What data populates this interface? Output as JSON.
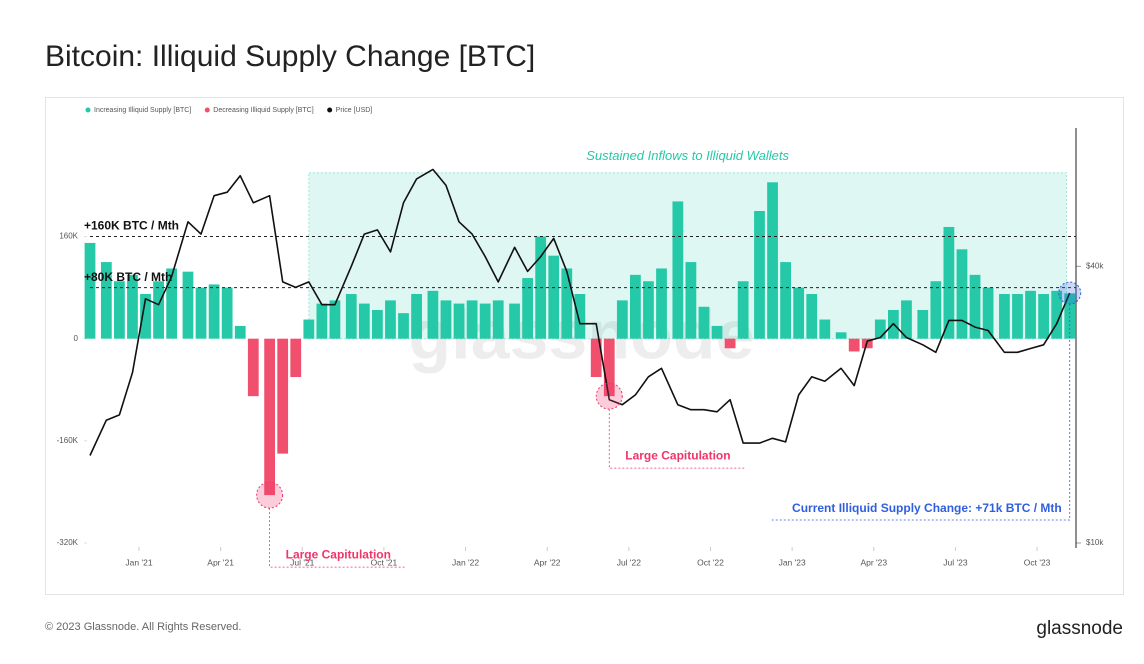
{
  "chart_data": {
    "type": "bar",
    "title": "Bitcoin: Illiquid Supply Change [BTC]",
    "legend": "top-left",
    "x": [
      2020.85,
      2020.9,
      2020.94,
      2020.98,
      2021.02,
      2021.06,
      2021.1,
      2021.15,
      2021.19,
      2021.23,
      2021.27,
      2021.31,
      2021.35,
      2021.4,
      2021.44,
      2021.48,
      2021.52,
      2021.56,
      2021.6,
      2021.65,
      2021.69,
      2021.73,
      2021.77,
      2021.81,
      2021.85,
      2021.9,
      2021.94,
      2021.98,
      2022.02,
      2022.06,
      2022.1,
      2022.15,
      2022.19,
      2022.23,
      2022.27,
      2022.31,
      2022.35,
      2022.4,
      2022.44,
      2022.48,
      2022.52,
      2022.56,
      2022.6,
      2022.65,
      2022.69,
      2022.73,
      2022.77,
      2022.81,
      2022.85,
      2022.9,
      2022.94,
      2022.98,
      2023.02,
      2023.06,
      2023.1,
      2023.15,
      2023.19,
      2023.23,
      2023.27,
      2023.31,
      2023.35,
      2023.4,
      2023.44,
      2023.48,
      2023.52,
      2023.56,
      2023.6,
      2023.65,
      2023.69,
      2023.73,
      2023.77,
      2023.81,
      2023.85
    ],
    "series": [
      {
        "name": "Increasing Illiquid Supply [BTC]",
        "color": "#25c9a8",
        "values": [
          150000,
          120000,
          90000,
          100000,
          70000,
          90000,
          110000,
          105000,
          80000,
          85000,
          80000,
          20000,
          null,
          null,
          null,
          null,
          30000,
          55000,
          60000,
          70000,
          55000,
          45000,
          60000,
          40000,
          70000,
          75000,
          60000,
          55000,
          60000,
          55000,
          60000,
          55000,
          95000,
          160000,
          130000,
          110000,
          70000,
          null,
          null,
          60000,
          100000,
          90000,
          110000,
          215000,
          120000,
          50000,
          20000,
          null,
          90000,
          200000,
          245000,
          120000,
          80000,
          70000,
          30000,
          10000,
          null,
          null,
          30000,
          45000,
          60000,
          45000,
          90000,
          175000,
          140000,
          100000,
          80000,
          70000,
          70000,
          75000,
          70000,
          75000,
          71000
        ]
      },
      {
        "name": "Decreasing Illiquid Supply [BTC]",
        "color": "#f0506e",
        "values": [
          null,
          null,
          null,
          null,
          null,
          null,
          null,
          null,
          null,
          null,
          null,
          null,
          -90000,
          -245000,
          -180000,
          -60000,
          null,
          null,
          null,
          null,
          null,
          null,
          null,
          null,
          null,
          null,
          null,
          null,
          null,
          null,
          null,
          null,
          null,
          null,
          null,
          null,
          null,
          -60000,
          -90000,
          null,
          null,
          null,
          null,
          null,
          null,
          null,
          null,
          -15000,
          null,
          null,
          null,
          null,
          null,
          null,
          null,
          null,
          -20000,
          -15000,
          null,
          null,
          null,
          null,
          null,
          null,
          null,
          null,
          null,
          null,
          null,
          null,
          null,
          null,
          null
        ]
      },
      {
        "name": "Price [USD]",
        "color": "#111111",
        "type": "line",
        "axis": "y2",
        "values": [
          15500,
          18500,
          19000,
          23500,
          34000,
          33000,
          38000,
          50000,
          47000,
          57000,
          58000,
          63000,
          55000,
          57000,
          37000,
          36000,
          37000,
          33000,
          33000,
          40000,
          47000,
          48000,
          43000,
          55000,
          62000,
          65000,
          60000,
          50000,
          47000,
          42000,
          37000,
          44000,
          39000,
          42000,
          46000,
          39000,
          30000,
          30000,
          20500,
          20000,
          21000,
          23000,
          24000,
          20000,
          19500,
          19500,
          19300,
          20500,
          16500,
          16500,
          16900,
          16600,
          21000,
          23000,
          22500,
          24000,
          22000,
          27500,
          28000,
          30000,
          28000,
          27000,
          26000,
          30500,
          30500,
          29500,
          29000,
          26000,
          26000,
          26500,
          27000,
          30000,
          35000
        ]
      }
    ],
    "xlim": [
      2020.85,
      2023.86
    ],
    "xticks": [
      {
        "value": 2021.0,
        "label": "Jan '21"
      },
      {
        "value": 2021.25,
        "label": "Apr '21"
      },
      {
        "value": 2021.5,
        "label": "Jul '21"
      },
      {
        "value": 2021.75,
        "label": "Oct '21"
      },
      {
        "value": 2022.0,
        "label": "Jan '22"
      },
      {
        "value": 2022.25,
        "label": "Apr '22"
      },
      {
        "value": 2022.5,
        "label": "Jul '22"
      },
      {
        "value": 2022.75,
        "label": "Oct '22"
      },
      {
        "value": 2023.0,
        "label": "Jan '23"
      },
      {
        "value": 2023.25,
        "label": "Apr '23"
      },
      {
        "value": 2023.5,
        "label": "Jul '23"
      },
      {
        "value": 2023.75,
        "label": "Oct '23"
      }
    ],
    "ylim": [
      -320000,
      330000
    ],
    "yticks": [
      {
        "value": 160000,
        "label": "160K"
      },
      0,
      {
        "value": -160000,
        "label": "-160K"
      },
      {
        "value": -320000,
        "label": "-320K"
      }
    ],
    "y2lim": [
      10000,
      80000
    ],
    "y2ticks": [
      {
        "value": 40000,
        "label": "$40k"
      },
      {
        "value": 10000,
        "label": "$10k"
      }
    ],
    "y2log": true,
    "reference_lines": [
      {
        "value": 160000,
        "label": "+160K BTC / Mth"
      },
      {
        "value": 80000,
        "label": "+80K BTC / Mth"
      }
    ],
    "shaded_region": {
      "label": "Sustained Inflows to Illiquid Wallets",
      "xlim": [
        2021.52,
        2023.84
      ],
      "ylim": [
        0,
        260000
      ],
      "color": "#25c9a8"
    },
    "annotations": [
      {
        "label": "Large Capitulation",
        "x": 2021.4,
        "y": -245000,
        "color": "#f0356a"
      },
      {
        "label": "Large Capitulation",
        "x": 2022.44,
        "y": -90000,
        "color": "#f0356a"
      }
    ],
    "current_annotation": {
      "label": "Current Illiquid Supply Change: +71k BTC / Mth",
      "color": "#2f5fe0"
    },
    "watermark": "glassnode",
    "footer": {
      "copyright": "© 2023 Glassnode. All Rights Reserved.",
      "brand": "glassnode"
    }
  }
}
